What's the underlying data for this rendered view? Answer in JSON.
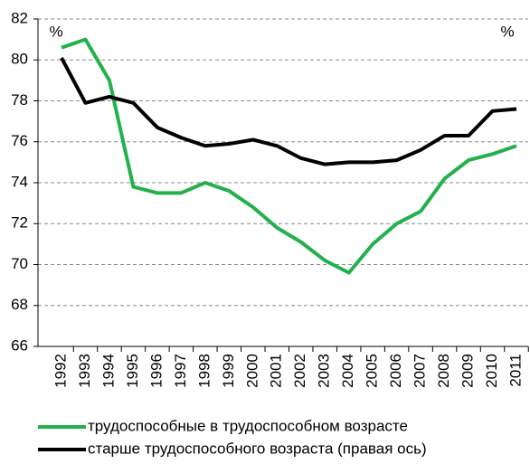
{
  "chart_data": {
    "type": "line",
    "ylabel": "%",
    "y2label": "%",
    "categories": [
      "1992",
      "1993",
      "1994",
      "1995",
      "1996",
      "1997",
      "1998",
      "1999",
      "2000",
      "2001",
      "2002",
      "2003",
      "2004",
      "2005",
      "2006",
      "2007",
      "2008",
      "2009",
      "2010",
      "2011"
    ],
    "series": [
      {
        "name": "трудоспособные в трудоспособном возрасте",
        "color": "#22b14c",
        "values": [
          80.6,
          81.0,
          79.0,
          73.8,
          73.5,
          73.5,
          74.0,
          73.6,
          72.8,
          71.8,
          71.1,
          70.2,
          69.6,
          71.0,
          72.0,
          72.6,
          74.2,
          75.1,
          75.4,
          75.8
        ]
      },
      {
        "name": "старше трудоспособного возраста (правая ось)",
        "color": "#000000",
        "values": [
          80.1,
          77.9,
          78.2,
          77.9,
          76.7,
          76.2,
          75.8,
          75.9,
          76.1,
          75.8,
          75.2,
          74.9,
          75.0,
          75.0,
          75.1,
          75.6,
          76.3,
          76.3,
          77.5,
          77.6
        ]
      }
    ],
    "ylim": [
      66,
      82
    ],
    "yticks": [
      66,
      68,
      70,
      72,
      74,
      76,
      78,
      80,
      82
    ],
    "grid": true
  }
}
